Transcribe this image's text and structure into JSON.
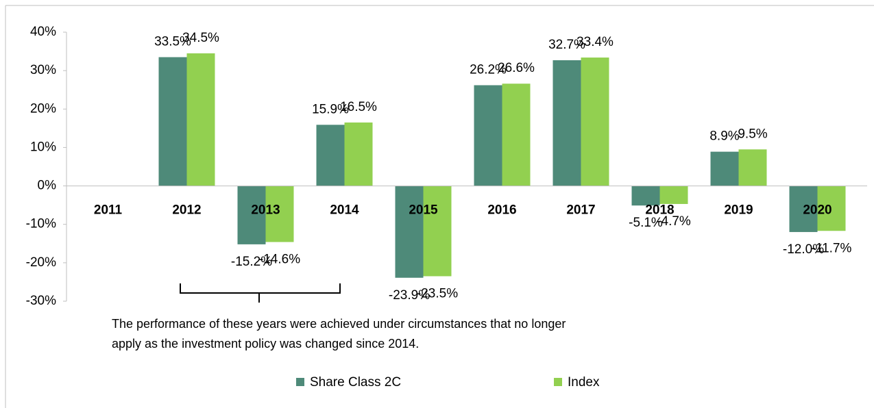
{
  "chart_data": {
    "type": "bar",
    "categories": [
      "2011",
      "2012",
      "2013",
      "2014",
      "2015",
      "2016",
      "2017",
      "2018",
      "2019",
      "2020"
    ],
    "series": [
      {
        "name": "Share Class 2C",
        "color": "#4e8a79",
        "values": [
          null,
          33.5,
          -15.2,
          15.9,
          -23.9,
          26.2,
          32.7,
          -5.1,
          8.9,
          -12.0
        ],
        "value_labels": [
          null,
          "33.5%",
          "-15.2%",
          "15.9%",
          "-23.9%",
          "26.2%",
          "32.7%",
          "-5.1%",
          "8.9%",
          "-12.0%"
        ]
      },
      {
        "name": "Index",
        "color": "#92d050",
        "values": [
          null,
          34.5,
          -14.6,
          16.5,
          -23.5,
          26.6,
          33.4,
          -4.7,
          9.5,
          -11.7
        ],
        "value_labels": [
          null,
          "34.5%",
          "-14.6%",
          "16.5%",
          "-23.5%",
          "26.6%",
          "33.4%",
          "-4.7%",
          "9.5%",
          "-11.7%"
        ]
      }
    ],
    "ylim": [
      -30,
      40
    ],
    "yticks": [
      {
        "value": -30,
        "label": "-30%"
      },
      {
        "value": -20,
        "label": "-20%"
      },
      {
        "value": -10,
        "label": "-10%"
      },
      {
        "value": 0,
        "label": "0%"
      },
      {
        "value": 10,
        "label": "10%"
      },
      {
        "value": 20,
        "label": "20%"
      },
      {
        "value": 30,
        "label": "30%"
      },
      {
        "value": 40,
        "label": "40%"
      }
    ],
    "annotation": [
      "The performance of these years were achieved under circumstances that no longer",
      "apply as the investment policy was changed since 2014."
    ],
    "legend": "bottom"
  }
}
